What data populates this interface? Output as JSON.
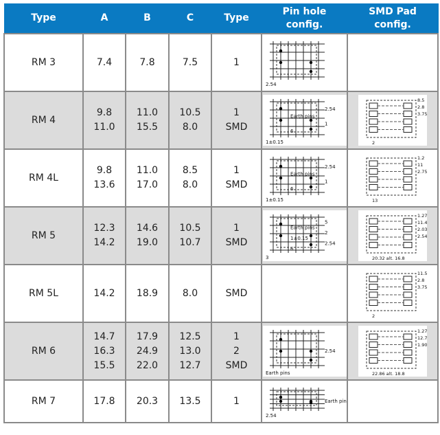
{
  "header": {
    "cols": [
      "Type",
      "A",
      "B",
      "C",
      "Type",
      "Pin hole\nconfig.",
      "SMD Pad\nconfig."
    ]
  },
  "colors": {
    "header_bg": "#0a7ac2",
    "alt_row_bg": "#dcdcdc",
    "border": "#8a8a8a"
  },
  "rows": [
    {
      "type": "RM 3",
      "a": [
        "7.4"
      ],
      "b": [
        "7.8"
      ],
      "c": [
        "7.5"
      ],
      "mount": [
        "1"
      ],
      "pin": {
        "labels": [
          "2.54"
        ]
      },
      "smd": null
    },
    {
      "type": "RM 4",
      "a": [
        "9.8",
        "11.0"
      ],
      "b": [
        "11.0",
        "15.5"
      ],
      "c": [
        "10.5",
        "8.0"
      ],
      "mount": [
        "1",
        "SMD"
      ],
      "pin": {
        "labels": [
          "1±0.15",
          "2.54",
          "Earth pins",
          "1",
          "6"
        ]
      },
      "smd": {
        "labels": [
          "8.5",
          "2.8",
          "3.75",
          "2"
        ]
      }
    },
    {
      "type": "RM 4L",
      "a": [
        "9.8",
        "13.6"
      ],
      "b": [
        "11.0",
        "17.0"
      ],
      "c": [
        "8.5",
        "8.0"
      ],
      "mount": [
        "1",
        "SMD"
      ],
      "pin": {
        "labels": [
          "1±0.15",
          "2.54",
          "Earth pins",
          "1",
          "6"
        ]
      },
      "smd": {
        "labels": [
          "1.2",
          "11",
          "2.75",
          "13"
        ]
      }
    },
    {
      "type": "RM 5",
      "a": [
        "12.3",
        "14.2"
      ],
      "b": [
        "14.6",
        "19.0"
      ],
      "c": [
        "10.5",
        "10.7"
      ],
      "mount": [
        "1",
        "SMD"
      ],
      "pin": {
        "labels": [
          "3",
          "5",
          "Earth pins",
          "2",
          "1±0.15",
          "2.54",
          "6"
        ]
      },
      "smd": {
        "labels": [
          "1.27",
          "11.43",
          "2.03",
          "2.54",
          "20.32 alt. 16.8"
        ]
      }
    },
    {
      "type": "RM 5L",
      "a": [
        "14.2"
      ],
      "b": [
        "18.9"
      ],
      "c": [
        "8.0"
      ],
      "mount": [
        "SMD"
      ],
      "pin": null,
      "smd": {
        "labels": [
          "11.5",
          "2.8",
          "3.75",
          "2"
        ]
      }
    },
    {
      "type": "RM 6",
      "a": [
        "14.7",
        "16.3",
        "15.5"
      ],
      "b": [
        "17.9",
        "24.9",
        "22.0"
      ],
      "c": [
        "12.5",
        "13.0",
        "12.7"
      ],
      "mount": [
        "1",
        "2",
        "SMD"
      ],
      "pin": {
        "labels": [
          "Earth pins",
          "2.54"
        ]
      },
      "smd": {
        "labels": [
          "1.27",
          "12.7",
          "1.905",
          "22.86 alt. 18.8"
        ]
      }
    },
    {
      "type": "RM 7",
      "a": [
        "17.8"
      ],
      "b": [
        "20.3"
      ],
      "c": [
        "13.5"
      ],
      "mount": [
        "1"
      ],
      "pin": {
        "labels": [
          "2.54",
          "Earth pins"
        ]
      },
      "smd": null
    }
  ]
}
